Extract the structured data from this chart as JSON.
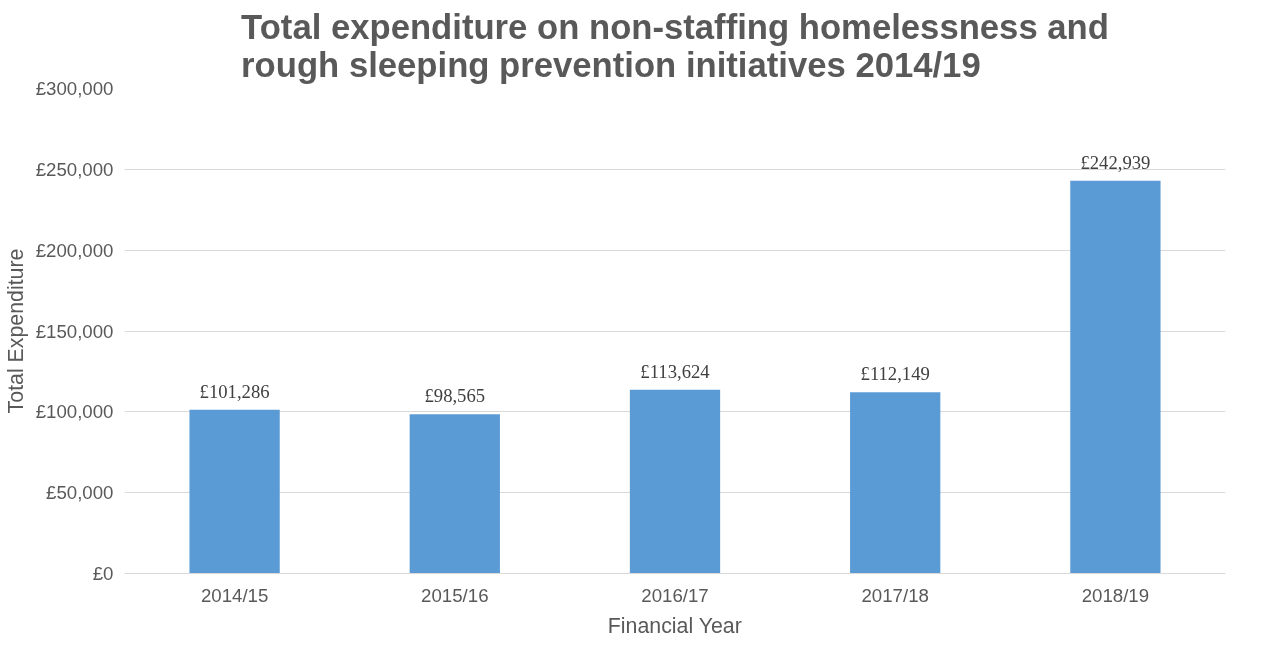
{
  "chart_data": {
    "type": "bar",
    "title": "Total expenditure on non-staffing homelessness and\nrough sleeping prevention initiatives 2014/19",
    "xlabel": "Financial Year",
    "ylabel": "Total Expenditure",
    "categories": [
      "2014/15",
      "2015/16",
      "2016/17",
      "2017/18",
      "2018/19"
    ],
    "values": [
      101286,
      98565,
      113624,
      112149,
      242939
    ],
    "value_labels": [
      "£101,286",
      "£98,565",
      "£113,624",
      "£112,149",
      "£242,939"
    ],
    "color": "#5b9bd5",
    "ylim": [
      0,
      300000
    ],
    "yticks": [
      {
        "value": 0,
        "label": "£0"
      },
      {
        "value": 50000,
        "label": "£50,000"
      },
      {
        "value": 100000,
        "label": "£100,000"
      },
      {
        "value": 150000,
        "label": "£150,000"
      },
      {
        "value": 200000,
        "label": "£200,000"
      },
      {
        "value": 250000,
        "label": "£250,000"
      },
      {
        "value": 300000,
        "label": "£300,000"
      }
    ],
    "grid": "y"
  }
}
